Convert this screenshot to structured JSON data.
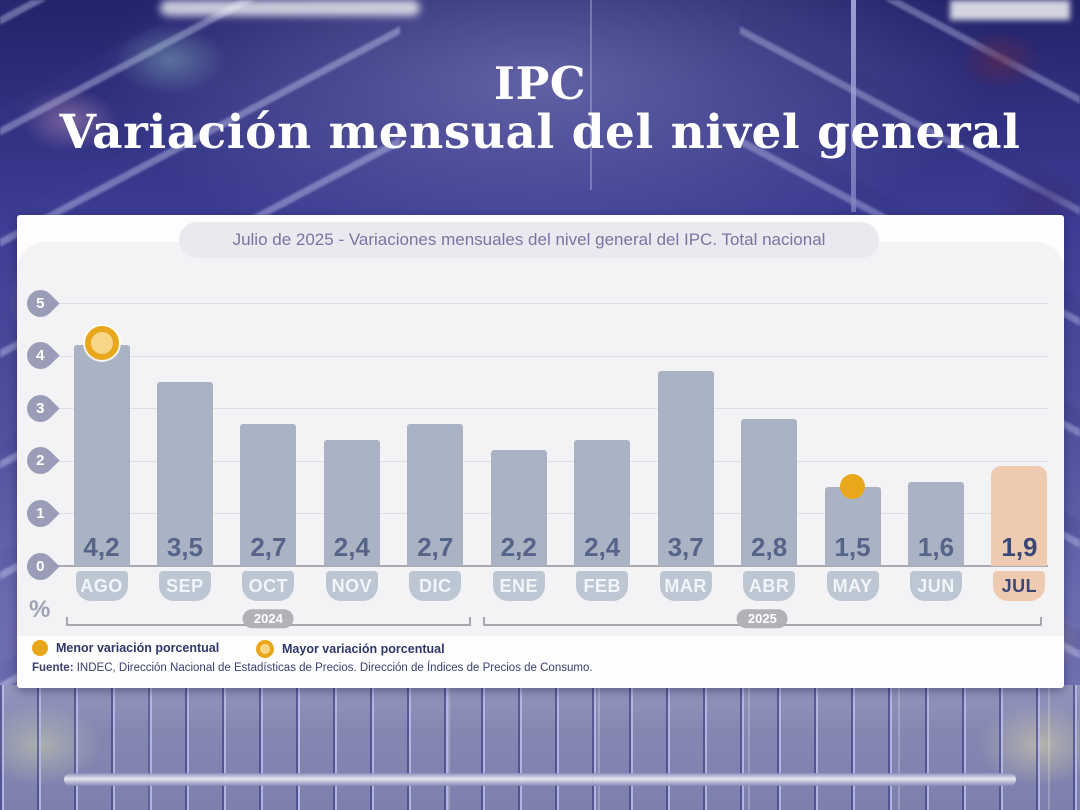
{
  "header": {
    "title_line1": "IPC",
    "title_line2": "Variación mensual del nivel general"
  },
  "chart": {
    "subtitle": "Julio de 2025 - Variaciones mensuales del nivel general del IPC. Total nacional",
    "y_unit": "%"
  },
  "chart_data": {
    "type": "bar",
    "title": "IPC - Variación mensual del nivel general",
    "subtitle": "Julio de 2025 - Variaciones mensuales del nivel general del IPC. Total nacional",
    "categories": [
      "AGO",
      "SEP",
      "OCT",
      "NOV",
      "DIC",
      "ENE",
      "FEB",
      "MAR",
      "ABR",
      "MAY",
      "JUN",
      "JUL"
    ],
    "values": [
      4.2,
      3.5,
      2.7,
      2.4,
      2.7,
      2.2,
      2.4,
      3.7,
      2.8,
      1.5,
      1.6,
      1.9
    ],
    "value_labels": [
      "4,2",
      "3,5",
      "2,7",
      "2,4",
      "2,7",
      "2,2",
      "2,4",
      "3,7",
      "2,8",
      "1,5",
      "1,6",
      "1,9"
    ],
    "xlabel": "",
    "ylabel": "%",
    "ylim": [
      0,
      5
    ],
    "yticks": [
      0,
      1,
      2,
      3,
      4,
      5
    ],
    "grid": true,
    "highlight_index": 11,
    "year_groups": [
      {
        "label": "2024",
        "from_index": 0,
        "to_index": 4
      },
      {
        "label": "2025",
        "from_index": 5,
        "to_index": 11
      }
    ],
    "markers": [
      {
        "kind": "min",
        "month": "MAY",
        "month_index": 9,
        "value": 1.5,
        "style": "solid-dot",
        "legend_label": "Menor variación porcentual"
      },
      {
        "kind": "max",
        "month": "AGO",
        "month_index": 0,
        "value": 4.2,
        "style": "ring-dot",
        "legend_label": "Mayor variación porcentual"
      }
    ]
  },
  "legend": {
    "items": [
      {
        "label": "Menor variación porcentual",
        "swatch": "solid-dot"
      },
      {
        "label": "Mayor variación porcentual",
        "swatch": "ring-dot"
      }
    ]
  },
  "source": {
    "label": "Fuente:",
    "text": " INDEC, Dirección Nacional de Estadísticas de Precios. Dirección de Índices de Precios de Consumo."
  },
  "colors": {
    "bar": "#a9b3c3",
    "bar_highlight": "#eecab1",
    "month_tab": "#bdc6d3",
    "month_tab_highlight": "#eecab1",
    "value_label": "#56648a",
    "value_label_highlight": "#3a4777",
    "month_label": "#f2f5f9",
    "month_label_highlight": "#3a4777",
    "axis_badge": "#9b9cb8",
    "gridline": "#dddde2",
    "baseline": "#a9a9b2",
    "marker_yellow": "#e9a71b",
    "marker_ring_center": "#f7d787",
    "bracket": "#a7a7ad",
    "year_pill": "#b1b1b6",
    "panel_bg": "#fdfdfe",
    "panel_body_bg": "#f3f3f6",
    "subtitle_pill_bg": "#e9e9ef",
    "subtitle_text": "#7b74a3",
    "legend_text": "#30376b",
    "source_text": "#3a4170",
    "title_text": "#ffffff",
    "background_overlay": "#3d3d95"
  }
}
